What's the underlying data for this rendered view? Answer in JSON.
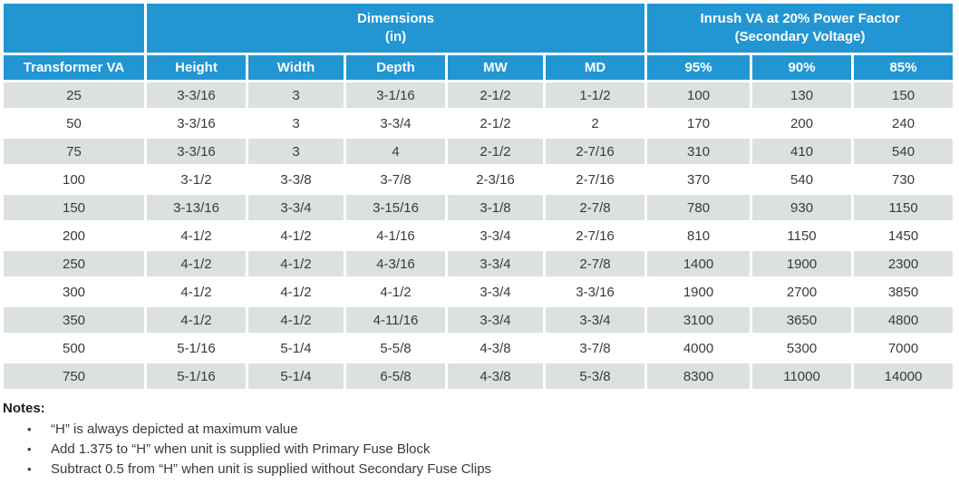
{
  "colors": {
    "header_blue": "#2196d3",
    "shaded_row_gray": "#dce0e0",
    "body_text": "#3a3a3c"
  },
  "table": {
    "group_headers": [
      {
        "label": "",
        "colspan": 1
      },
      {
        "label": "Dimensions\n(in)",
        "colspan": 5
      },
      {
        "label": "Inrush VA at 20% Power Factor\n(Secondary Voltage)",
        "colspan": 3
      }
    ],
    "column_headers": [
      "Transformer VA",
      "Height",
      "Width",
      "Depth",
      "MW",
      "MD",
      "95%",
      "90%",
      "85%"
    ],
    "rows": [
      [
        "25",
        "3-3/16",
        "3",
        "3-1/16",
        "2-1/2",
        "1-1/2",
        "100",
        "130",
        "150"
      ],
      [
        "50",
        "3-3/16",
        "3",
        "3-3/4",
        "2-1/2",
        "2",
        "170",
        "200",
        "240"
      ],
      [
        "75",
        "3-3/16",
        "3",
        "4",
        "2-1/2",
        "2-7/16",
        "310",
        "410",
        "540"
      ],
      [
        "100",
        "3-1/2",
        "3-3/8",
        "3-7/8",
        "2-3/16",
        "2-7/16",
        "370",
        "540",
        "730"
      ],
      [
        "150",
        "3-13/16",
        "3-3/4",
        "3-15/16",
        "3-1/8",
        "2-7/8",
        "780",
        "930",
        "1150"
      ],
      [
        "200",
        "4-1/2",
        "4-1/2",
        "4-1/16",
        "3-3/4",
        "2-7/16",
        "810",
        "1150",
        "1450"
      ],
      [
        "250",
        "4-1/2",
        "4-1/2",
        "4-3/16",
        "3-3/4",
        "2-7/8",
        "1400",
        "1900",
        "2300"
      ],
      [
        "300",
        "4-1/2",
        "4-1/2",
        "4-1/2",
        "3-3/4",
        "3-3/16",
        "1900",
        "2700",
        "3850"
      ],
      [
        "350",
        "4-1/2",
        "4-1/2",
        "4-11/16",
        "3-3/4",
        "3-3/4",
        "3100",
        "3650",
        "4800"
      ],
      [
        "500",
        "5-1/16",
        "5-1/4",
        "5-5/8",
        "4-3/8",
        "3-7/8",
        "4000",
        "5300",
        "7000"
      ],
      [
        "750",
        "5-1/16",
        "5-1/4",
        "6-5/8",
        "4-3/8",
        "5-3/8",
        "8300",
        "11000",
        "14000"
      ]
    ]
  },
  "notes": {
    "heading": "Notes:",
    "bullet_glyph": "•",
    "items": [
      "“H” is always depicted at maximum value",
      "Add 1.375 to “H” when unit is supplied with Primary Fuse Block",
      "Subtract 0.5 from “H” when unit is supplied without Secondary Fuse Clips"
    ]
  }
}
